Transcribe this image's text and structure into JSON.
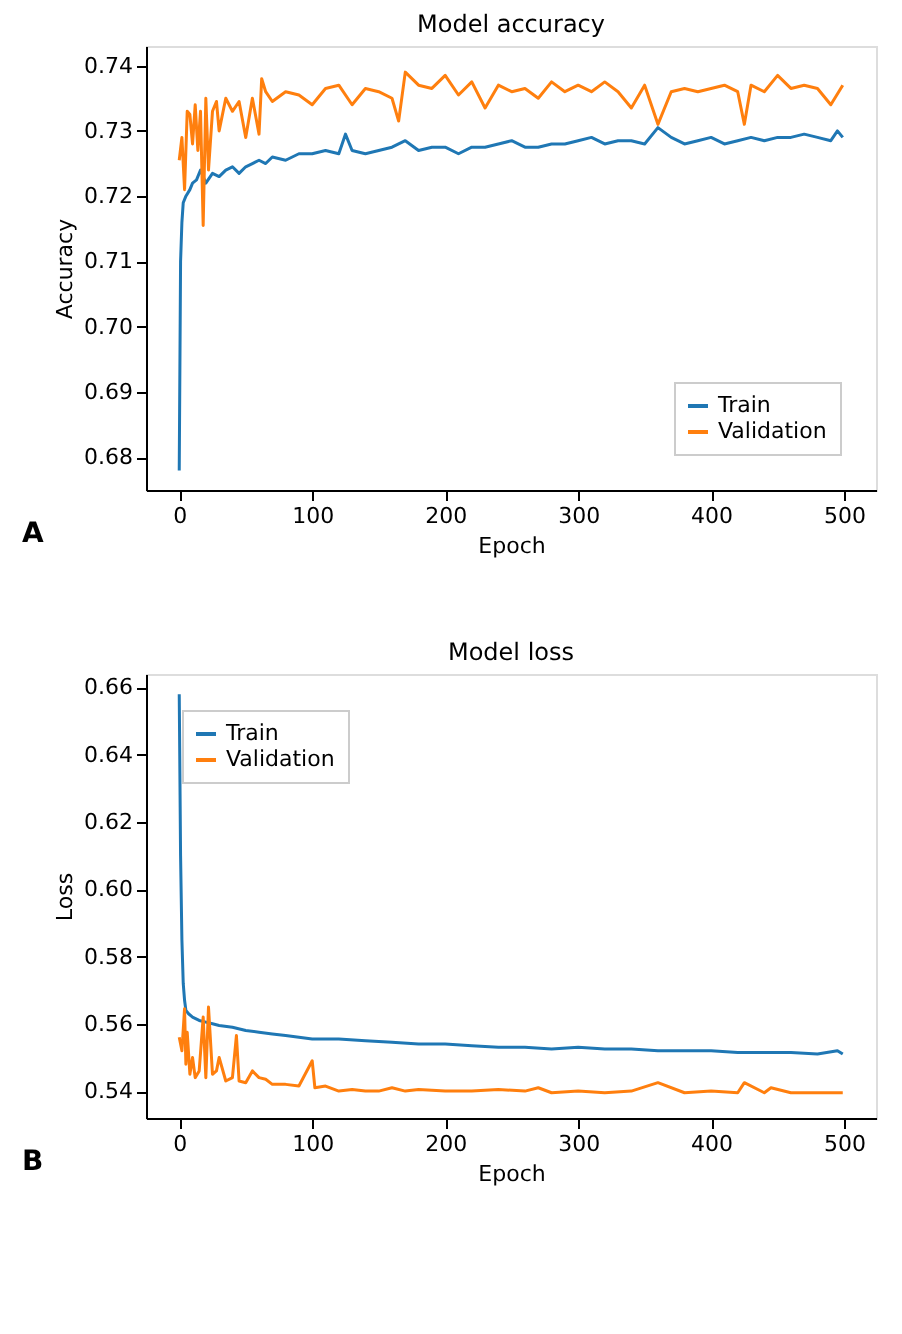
{
  "chart_data": [
    {
      "type": "line",
      "title": "Model accuracy",
      "xlabel": "Epoch",
      "ylabel": "Accuracy",
      "xlim": [
        -25,
        524
      ],
      "ylim": [
        0.675,
        0.743
      ],
      "xticks": [
        0,
        100,
        200,
        300,
        400,
        500
      ],
      "yticks": [
        0.68,
        0.69,
        {
          "value": 0.7,
          "label": "0.70"
        },
        0.71,
        0.72,
        0.73,
        0.74
      ],
      "grid": false,
      "legend": "bottom right",
      "annotations": [
        "A"
      ],
      "series": [
        {
          "name": "Train",
          "color": "#1f77b4",
          "x": [
            0,
            1,
            2,
            3,
            5,
            8,
            10,
            13,
            16,
            20,
            25,
            30,
            35,
            40,
            45,
            50,
            55,
            60,
            65,
            70,
            80,
            90,
            100,
            110,
            120,
            125,
            130,
            140,
            150,
            160,
            170,
            180,
            190,
            200,
            210,
            220,
            230,
            240,
            250,
            260,
            270,
            280,
            290,
            300,
            310,
            320,
            330,
            340,
            350,
            360,
            370,
            380,
            390,
            400,
            410,
            420,
            430,
            440,
            450,
            460,
            470,
            480,
            490,
            495,
            499
          ],
          "values": [
            0.678,
            0.71,
            0.716,
            0.719,
            0.72,
            0.721,
            0.722,
            0.7225,
            0.724,
            0.722,
            0.7235,
            0.723,
            0.724,
            0.7245,
            0.7235,
            0.7245,
            0.725,
            0.7255,
            0.725,
            0.726,
            0.7255,
            0.7265,
            0.7265,
            0.727,
            0.7265,
            0.7295,
            0.727,
            0.7265,
            0.727,
            0.7275,
            0.7285,
            0.727,
            0.7275,
            0.7275,
            0.7265,
            0.7275,
            0.7275,
            0.728,
            0.7285,
            0.7275,
            0.7275,
            0.728,
            0.728,
            0.7285,
            0.729,
            0.728,
            0.7285,
            0.7285,
            0.728,
            0.7305,
            0.729,
            0.728,
            0.7285,
            0.729,
            0.728,
            0.7285,
            0.729,
            0.7285,
            0.729,
            0.729,
            0.7295,
            0.729,
            0.7285,
            0.73,
            0.729
          ]
        },
        {
          "name": "Validation",
          "color": "#ff7f0e",
          "x": [
            0,
            2,
            4,
            6,
            8,
            10,
            12,
            14,
            16,
            18,
            20,
            22,
            25,
            28,
            30,
            35,
            40,
            45,
            50,
            55,
            60,
            62,
            65,
            70,
            80,
            90,
            100,
            110,
            120,
            130,
            140,
            150,
            160,
            165,
            170,
            180,
            190,
            200,
            210,
            220,
            230,
            240,
            250,
            260,
            270,
            280,
            290,
            300,
            310,
            320,
            330,
            340,
            350,
            360,
            370,
            380,
            390,
            400,
            410,
            420,
            425,
            430,
            440,
            450,
            460,
            470,
            480,
            490,
            499
          ],
          "values": [
            0.7255,
            0.729,
            0.721,
            0.733,
            0.7325,
            0.728,
            0.734,
            0.727,
            0.733,
            0.7155,
            0.735,
            0.724,
            0.733,
            0.7345,
            0.73,
            0.735,
            0.733,
            0.7345,
            0.729,
            0.735,
            0.7295,
            0.738,
            0.736,
            0.7345,
            0.736,
            0.7355,
            0.734,
            0.7365,
            0.737,
            0.734,
            0.7365,
            0.736,
            0.735,
            0.7315,
            0.739,
            0.737,
            0.7365,
            0.7385,
            0.7355,
            0.7375,
            0.7335,
            0.737,
            0.736,
            0.7365,
            0.735,
            0.7375,
            0.736,
            0.737,
            0.736,
            0.7375,
            0.736,
            0.7335,
            0.737,
            0.731,
            0.736,
            0.7365,
            0.736,
            0.7365,
            0.737,
            0.736,
            0.731,
            0.737,
            0.736,
            0.7385,
            0.7365,
            0.737,
            0.7365,
            0.734,
            0.737
          ]
        }
      ]
    },
    {
      "type": "line",
      "title": "Model loss",
      "xlabel": "Epoch",
      "ylabel": "Loss",
      "xlim": [
        -25,
        524
      ],
      "ylim": [
        0.532,
        0.664
      ],
      "xticks": [
        0,
        100,
        200,
        300,
        400,
        500
      ],
      "yticks": [
        0.54,
        0.56,
        0.58,
        {
          "value": 0.6,
          "label": "0.60"
        },
        0.62,
        0.64,
        0.66
      ],
      "grid": false,
      "legend": "top left",
      "annotations": [
        "B"
      ],
      "series": [
        {
          "name": "Train",
          "color": "#1f77b4",
          "x": [
            0,
            1,
            2,
            3,
            4,
            5,
            7,
            10,
            15,
            20,
            25,
            30,
            40,
            50,
            60,
            70,
            80,
            90,
            100,
            120,
            140,
            160,
            180,
            200,
            220,
            240,
            260,
            280,
            300,
            320,
            340,
            360,
            380,
            400,
            420,
            440,
            460,
            480,
            495,
            499
          ],
          "values": [
            0.658,
            0.61,
            0.585,
            0.572,
            0.567,
            0.564,
            0.563,
            0.562,
            0.561,
            0.5605,
            0.56,
            0.5595,
            0.559,
            0.558,
            0.5575,
            0.557,
            0.5565,
            0.556,
            0.5555,
            0.5555,
            0.555,
            0.5545,
            0.554,
            0.554,
            0.5535,
            0.553,
            0.553,
            0.5525,
            0.553,
            0.5525,
            0.5525,
            0.552,
            0.552,
            0.552,
            0.5515,
            0.5515,
            0.5515,
            0.551,
            0.552,
            0.551
          ]
        },
        {
          "name": "Validation",
          "color": "#ff7f0e",
          "x": [
            0,
            2,
            4,
            5,
            6,
            8,
            10,
            12,
            15,
            18,
            20,
            22,
            25,
            28,
            30,
            35,
            40,
            43,
            45,
            50,
            55,
            60,
            65,
            70,
            80,
            90,
            100,
            102,
            110,
            120,
            130,
            140,
            150,
            160,
            170,
            180,
            200,
            220,
            240,
            260,
            270,
            280,
            300,
            320,
            340,
            360,
            380,
            400,
            420,
            425,
            440,
            445,
            460,
            480,
            499
          ],
          "values": [
            0.556,
            0.552,
            0.5645,
            0.548,
            0.5575,
            0.545,
            0.55,
            0.544,
            0.546,
            0.562,
            0.544,
            0.565,
            0.545,
            0.546,
            0.55,
            0.543,
            0.544,
            0.5565,
            0.543,
            0.5425,
            0.546,
            0.544,
            0.5435,
            0.542,
            0.542,
            0.5415,
            0.549,
            0.541,
            0.5415,
            0.54,
            0.5405,
            0.54,
            0.54,
            0.541,
            0.54,
            0.5405,
            0.54,
            0.54,
            0.5405,
            0.54,
            0.541,
            0.5395,
            0.54,
            0.5395,
            0.54,
            0.5425,
            0.5395,
            0.54,
            0.5395,
            0.5425,
            0.5395,
            0.541,
            0.5395,
            0.5395,
            0.5395
          ]
        }
      ]
    }
  ]
}
